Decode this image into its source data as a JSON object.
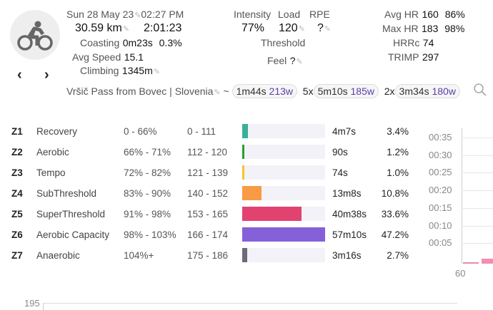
{
  "activity": {
    "icon": "bike-icon",
    "date": "Sun 28 May 23",
    "time": "02:27 PM",
    "distance": "30.59 km",
    "duration": "2:01:23",
    "coasting_label": "Coasting",
    "coasting_time": "0m23s",
    "coasting_pct": "0.3%",
    "avg_speed_label": "Avg Speed",
    "avg_speed": "15.1",
    "climbing_label": "Climbing",
    "climbing": "1345m",
    "title": "Vršič Pass from Bovec | Slovenia",
    "tilde": "~"
  },
  "metrics": {
    "intensity_label": "Intensity",
    "intensity": "77%",
    "load_label": "Load",
    "load": "120",
    "rpe_label": "RPE",
    "rpe": "?",
    "threshold_label": "Threshold",
    "feel_label": "Feel",
    "feel": "?"
  },
  "hr": {
    "avg_label": "Avg HR",
    "avg": "160",
    "avg_pct": "86%",
    "max_label": "Max HR",
    "max": "183",
    "max_pct": "98%",
    "hrrc_label": "HRRc",
    "hrrc": "74",
    "trimp_label": "TRIMP",
    "trimp": "297"
  },
  "intervals": [
    {
      "prefix": "",
      "time": "1m44s",
      "watts": "213w"
    },
    {
      "prefix": "5x",
      "time": "5m10s",
      "watts": "185w"
    },
    {
      "prefix": "2x",
      "time": "3m34s",
      "watts": "180w"
    }
  ],
  "zones": [
    {
      "id": "Z1",
      "name": "Recovery",
      "pct": "0 - 66%",
      "hr": "0 - 111",
      "time": "4m7s",
      "share": "3.4%",
      "value": 3.4,
      "color": "#3aaf9a"
    },
    {
      "id": "Z2",
      "name": "Aerobic",
      "pct": "66% - 71%",
      "hr": "112 - 120",
      "time": "90s",
      "share": "1.2%",
      "value": 1.2,
      "color": "#2ca02c"
    },
    {
      "id": "Z3",
      "name": "Tempo",
      "pct": "72% - 82%",
      "hr": "121 - 139",
      "time": "74s",
      "share": "1.0%",
      "value": 1.0,
      "color": "#f5c330"
    },
    {
      "id": "Z4",
      "name": "SubThreshold",
      "pct": "83% - 90%",
      "hr": "140 - 152",
      "time": "13m8s",
      "share": "10.8%",
      "value": 10.8,
      "color": "#f99a45"
    },
    {
      "id": "Z5",
      "name": "SuperThreshold",
      "pct": "91% - 98%",
      "hr": "153 - 165",
      "time": "40m38s",
      "share": "33.6%",
      "value": 33.6,
      "color": "#e2426f"
    },
    {
      "id": "Z6",
      "name": "Aerobic Capacity",
      "pct": "98% - 103%",
      "hr": "166 - 174",
      "time": "57m10s",
      "share": "47.2%",
      "value": 47.2,
      "color": "#8660d8"
    },
    {
      "id": "Z7",
      "name": "Anaerobic",
      "pct": "104%+",
      "hr": "175 - 186",
      "time": "3m16s",
      "share": "2.7%",
      "value": 2.7,
      "color": "#6d6a7a"
    }
  ],
  "histogram": {
    "y_ticks": [
      "00:35",
      "00:30",
      "00:25",
      "00:20",
      "00:15",
      "00:10",
      "00:05"
    ],
    "x_tick": "60"
  },
  "bottom_chart": {
    "y_tick": "195"
  }
}
